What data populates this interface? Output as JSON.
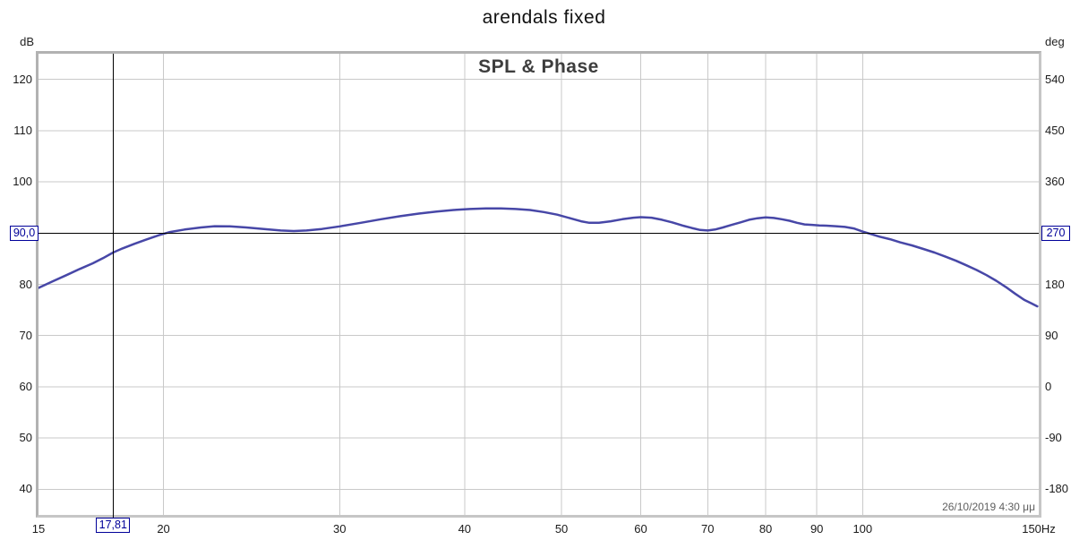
{
  "page": {
    "title": "arendals fixed"
  },
  "chart": {
    "inner_title": "SPL & Phase",
    "left_unit": "dB",
    "right_unit": "deg",
    "timestamp": "26/10/2019 4:30 μμ",
    "cursor": {
      "freq": 17.81,
      "db": 90.0,
      "freq_label": "17,81",
      "db_label": "90,0",
      "deg_label": "270"
    },
    "colors": {
      "curve": "#4747a7",
      "grid": "#c9c9c9",
      "crosshair": "#000000",
      "cursor_accent": "#000099",
      "plot_border": "#c6c6c6",
      "inner_title": "#3d3d3d",
      "timestamp_text": "#5f5f5f"
    }
  },
  "chart_data": {
    "type": "line",
    "window_title": "arendals fixed",
    "title": "SPL & Phase",
    "legend": "none",
    "grid": true,
    "x_axis": {
      "unit": "Hz",
      "scale": "log",
      "min": 15,
      "max": 150,
      "gridlines": [
        20,
        30,
        40,
        50,
        60,
        70,
        80,
        90,
        100
      ],
      "ticks": [
        {
          "f": 15,
          "label": "15"
        },
        {
          "f": 20,
          "label": "20"
        },
        {
          "f": 30,
          "label": "30"
        },
        {
          "f": 40,
          "label": "40"
        },
        {
          "f": 50,
          "label": "50"
        },
        {
          "f": 60,
          "label": "60"
        },
        {
          "f": 70,
          "label": "70"
        },
        {
          "f": 80,
          "label": "80"
        },
        {
          "f": 90,
          "label": "90"
        },
        {
          "f": 100,
          "label": "100"
        },
        {
          "f": 150,
          "label": "150Hz"
        }
      ]
    },
    "y_axis_left": {
      "unit": "dB",
      "min": 35,
      "max": 125,
      "gridlines": [
        120,
        110,
        100,
        90,
        80,
        70,
        60,
        50,
        40
      ],
      "ticks": [
        {
          "db": 120,
          "label": "120"
        },
        {
          "db": 110,
          "label": "110"
        },
        {
          "db": 100,
          "label": "100"
        },
        {
          "db": 80,
          "label": "80"
        },
        {
          "db": 70,
          "label": "70"
        },
        {
          "db": 60,
          "label": "60"
        },
        {
          "db": 50,
          "label": "50"
        },
        {
          "db": 40,
          "label": "40"
        }
      ]
    },
    "y_axis_right": {
      "unit": "deg",
      "min": -225,
      "max": 585,
      "ticks": [
        {
          "deg": 540,
          "label": "540"
        },
        {
          "deg": 450,
          "label": "450"
        },
        {
          "deg": 360,
          "label": "360"
        },
        {
          "deg": 180,
          "label": "180"
        },
        {
          "deg": 90,
          "label": "90"
        },
        {
          "deg": 0,
          "label": "0"
        },
        {
          "deg": -90,
          "label": "-90"
        },
        {
          "deg": -180,
          "label": "-180"
        }
      ]
    },
    "cursor": {
      "freq_hz": 17.81,
      "level_db": 90.0,
      "phase_deg": 270
    },
    "series": [
      {
        "name": "SPL",
        "color": "#4747a7",
        "points": [
          [
            15,
            79.3
          ],
          [
            15.5,
            80.6
          ],
          [
            16,
            81.8
          ],
          [
            16.5,
            83.0
          ],
          [
            17,
            84.1
          ],
          [
            17.4,
            85.1
          ],
          [
            17.81,
            86.2
          ],
          [
            18.2,
            87.0
          ],
          [
            18.7,
            87.9
          ],
          [
            19.2,
            88.7
          ],
          [
            19.8,
            89.6
          ],
          [
            20.3,
            90.2
          ],
          [
            21,
            90.7
          ],
          [
            21.8,
            91.1
          ],
          [
            22.5,
            91.35
          ],
          [
            23.3,
            91.3
          ],
          [
            24.2,
            91.1
          ],
          [
            25.2,
            90.8
          ],
          [
            26.2,
            90.5
          ],
          [
            27,
            90.4
          ],
          [
            27.8,
            90.5
          ],
          [
            28.8,
            90.8
          ],
          [
            30,
            91.3
          ],
          [
            31.5,
            92.0
          ],
          [
            33,
            92.7
          ],
          [
            34.5,
            93.3
          ],
          [
            36,
            93.8
          ],
          [
            37.5,
            94.2
          ],
          [
            39,
            94.5
          ],
          [
            40.5,
            94.7
          ],
          [
            42,
            94.8
          ],
          [
            43.5,
            94.8
          ],
          [
            45,
            94.7
          ],
          [
            46.5,
            94.5
          ],
          [
            48,
            94.1
          ],
          [
            49.5,
            93.6
          ],
          [
            51,
            92.9
          ],
          [
            52.3,
            92.3
          ],
          [
            53.3,
            92.0
          ],
          [
            54.5,
            92.0
          ],
          [
            56,
            92.3
          ],
          [
            57.5,
            92.7
          ],
          [
            59,
            93.0
          ],
          [
            60,
            93.1
          ],
          [
            61.5,
            93.0
          ],
          [
            63,
            92.6
          ],
          [
            64.5,
            92.1
          ],
          [
            66,
            91.5
          ],
          [
            67.5,
            91.0
          ],
          [
            68.8,
            90.6
          ],
          [
            70,
            90.5
          ],
          [
            71.2,
            90.7
          ],
          [
            72.5,
            91.1
          ],
          [
            74,
            91.6
          ],
          [
            75.5,
            92.1
          ],
          [
            77,
            92.6
          ],
          [
            78.5,
            92.9
          ],
          [
            80,
            93.05
          ],
          [
            81.5,
            92.95
          ],
          [
            83,
            92.7
          ],
          [
            84.5,
            92.4
          ],
          [
            86,
            92.0
          ],
          [
            87.5,
            91.7
          ],
          [
            89,
            91.6
          ],
          [
            90.5,
            91.5
          ],
          [
            92,
            91.45
          ],
          [
            94,
            91.35
          ],
          [
            96,
            91.2
          ],
          [
            98,
            90.9
          ],
          [
            100,
            90.3
          ],
          [
            102,
            89.8
          ],
          [
            104,
            89.3
          ],
          [
            106.5,
            88.8
          ],
          [
            109,
            88.2
          ],
          [
            112,
            87.6
          ],
          [
            115,
            86.9
          ],
          [
            118,
            86.2
          ],
          [
            121,
            85.4
          ],
          [
            124,
            84.6
          ],
          [
            127,
            83.7
          ],
          [
            130,
            82.8
          ],
          [
            133,
            81.8
          ],
          [
            136,
            80.7
          ],
          [
            139,
            79.5
          ],
          [
            142,
            78.2
          ],
          [
            145,
            77.0
          ],
          [
            147.5,
            76.3
          ],
          [
            149.5,
            75.7
          ]
        ]
      }
    ]
  }
}
